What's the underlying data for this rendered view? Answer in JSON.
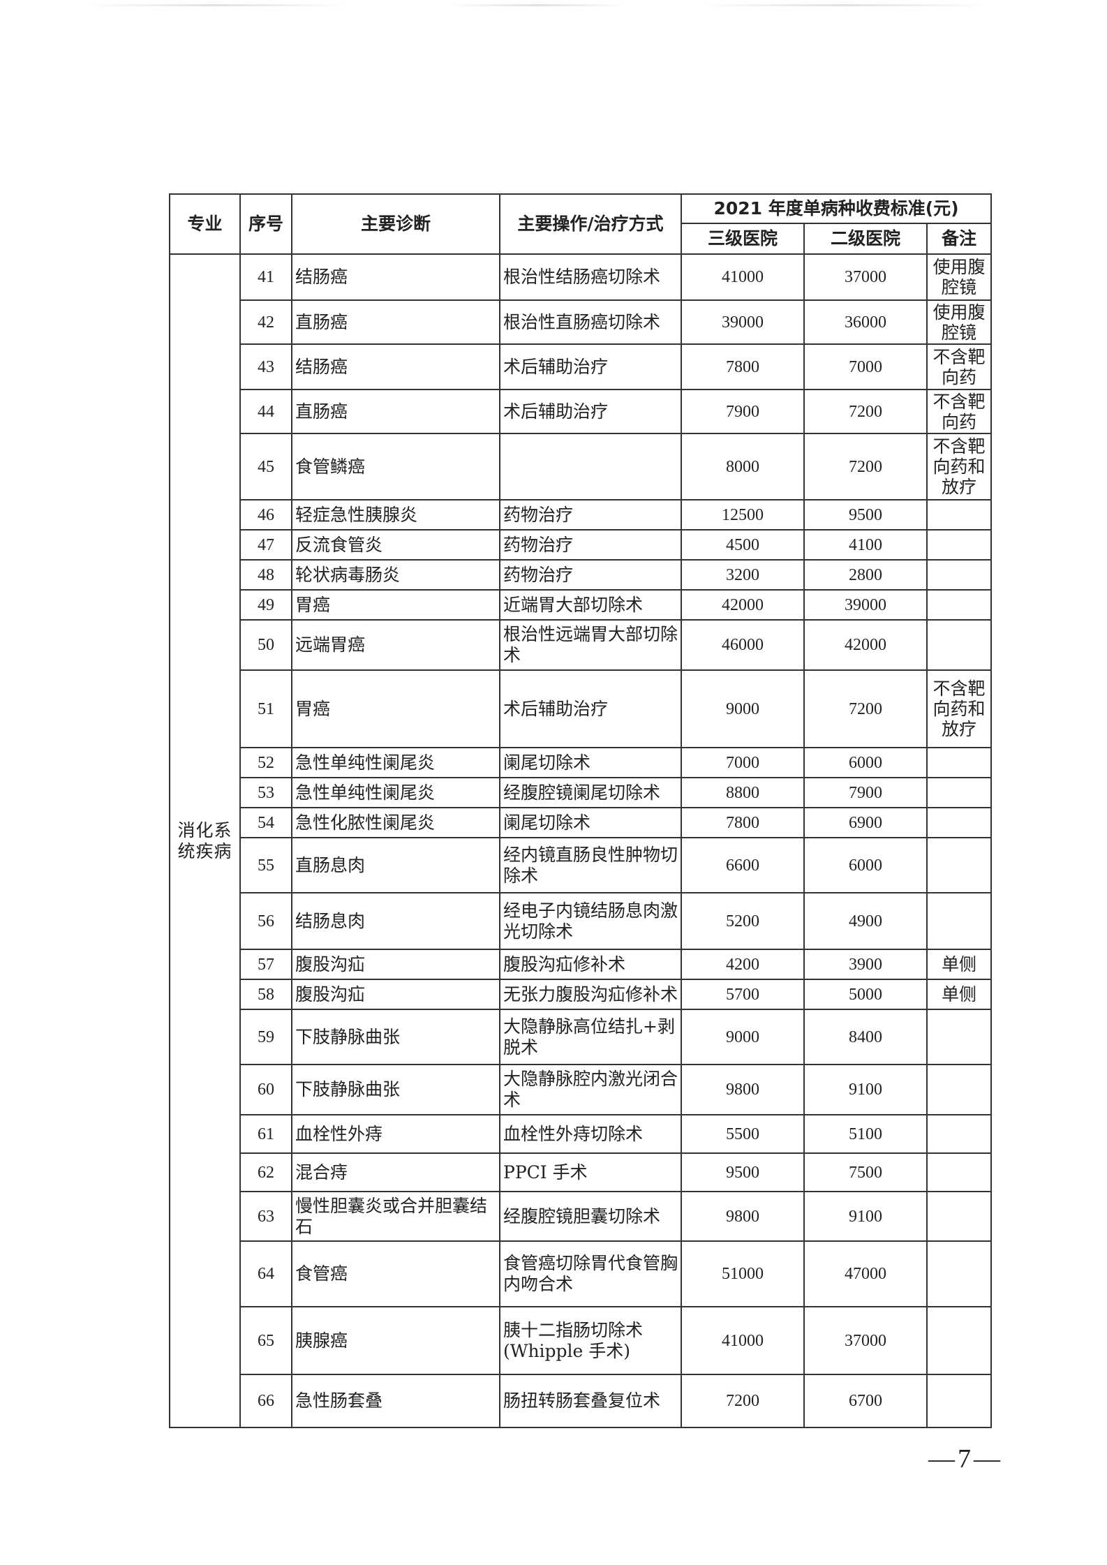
{
  "header": {
    "specialty": "专业",
    "seq": "序号",
    "diagnosis": "主要诊断",
    "operation": "主要操作/治疗方式",
    "fee_group": "2021 年度单病种收费标准(元)",
    "tier3": "三级医院",
    "tier2": "二级医院",
    "note": "备注"
  },
  "specialty": "消化系统疾病",
  "rows": [
    {
      "seq": "41",
      "diag": "结肠癌",
      "op": "根治性结肠癌切除术",
      "t3": "41000",
      "t2": "37000",
      "note": "使用腹腔镜"
    },
    {
      "seq": "42",
      "diag": "直肠癌",
      "op": "根治性直肠癌切除术",
      "t3": "39000",
      "t2": "36000",
      "note": "使用腹腔镜"
    },
    {
      "seq": "43",
      "diag": "结肠癌",
      "op": "术后辅助治疗",
      "t3": "7800",
      "t2": "7000",
      "note": "不含靶向药"
    },
    {
      "seq": "44",
      "diag": "直肠癌",
      "op": "术后辅助治疗",
      "t3": "7900",
      "t2": "7200",
      "note": "不含靶向药"
    },
    {
      "seq": "45",
      "diag": "食管鳞癌",
      "op": "",
      "t3": "8000",
      "t2": "7200",
      "note": "不含靶向药和放疗"
    },
    {
      "seq": "46",
      "diag": "轻症急性胰腺炎",
      "op": "药物治疗",
      "t3": "12500",
      "t2": "9500",
      "note": ""
    },
    {
      "seq": "47",
      "diag": "反流食管炎",
      "op": "药物治疗",
      "t3": "4500",
      "t2": "4100",
      "note": ""
    },
    {
      "seq": "48",
      "diag": "轮状病毒肠炎",
      "op": "药物治疗",
      "t3": "3200",
      "t2": "2800",
      "note": ""
    },
    {
      "seq": "49",
      "diag": "胃癌",
      "op": "近端胃大部切除术",
      "t3": "42000",
      "t2": "39000",
      "note": ""
    },
    {
      "seq": "50",
      "diag": "远端胃癌",
      "op": "根治性远端胃大部切除术",
      "t3": "46000",
      "t2": "42000",
      "note": ""
    },
    {
      "seq": "51",
      "diag": "胃癌",
      "op": "术后辅助治疗",
      "t3": "9000",
      "t2": "7200",
      "note": "不含靶向药和放疗"
    },
    {
      "seq": "52",
      "diag": "急性单纯性阑尾炎",
      "op": "阑尾切除术",
      "t3": "7000",
      "t2": "6000",
      "note": ""
    },
    {
      "seq": "53",
      "diag": "急性单纯性阑尾炎",
      "op": "经腹腔镜阑尾切除术",
      "t3": "8800",
      "t2": "7900",
      "note": ""
    },
    {
      "seq": "54",
      "diag": "急性化脓性阑尾炎",
      "op": "阑尾切除术",
      "t3": "7800",
      "t2": "6900",
      "note": ""
    },
    {
      "seq": "55",
      "diag": "直肠息肉",
      "op": "经内镜直肠良性肿物切除术",
      "t3": "6600",
      "t2": "6000",
      "note": ""
    },
    {
      "seq": "56",
      "diag": "结肠息肉",
      "op": "经电子内镜结肠息肉激光切除术",
      "t3": "5200",
      "t2": "4900",
      "note": ""
    },
    {
      "seq": "57",
      "diag": "腹股沟疝",
      "op": "腹股沟疝修补术",
      "t3": "4200",
      "t2": "3900",
      "note": "单侧"
    },
    {
      "seq": "58",
      "diag": "腹股沟疝",
      "op": "无张力腹股沟疝修补术",
      "t3": "5700",
      "t2": "5000",
      "note": "单侧"
    },
    {
      "seq": "59",
      "diag": "下肢静脉曲张",
      "op": "大隐静脉高位结扎+剥脱术",
      "t3": "9000",
      "t2": "8400",
      "note": ""
    },
    {
      "seq": "60",
      "diag": "下肢静脉曲张",
      "op": "大隐静脉腔内激光闭合术",
      "t3": "9800",
      "t2": "9100",
      "note": ""
    },
    {
      "seq": "61",
      "diag": "血栓性外痔",
      "op": "血栓性外痔切除术",
      "t3": "5500",
      "t2": "5100",
      "note": ""
    },
    {
      "seq": "62",
      "diag": "混合痔",
      "op": "PPCI 手术",
      "t3": "9500",
      "t2": "7500",
      "note": ""
    },
    {
      "seq": "63",
      "diag": "慢性胆囊炎或合并胆囊结石",
      "op": "经腹腔镜胆囊切除术",
      "t3": "9800",
      "t2": "9100",
      "note": ""
    },
    {
      "seq": "64",
      "diag": "食管癌",
      "op": "食管癌切除胃代食管胸内吻合术",
      "t3": "51000",
      "t2": "47000",
      "note": ""
    },
    {
      "seq": "65",
      "diag": "胰腺癌",
      "op": "胰十二指肠切除术(Whipple 手术)",
      "t3": "41000",
      "t2": "37000",
      "note": ""
    },
    {
      "seq": "66",
      "diag": "急性肠套叠",
      "op": "肠扭转肠套叠复位术",
      "t3": "7200",
      "t2": "6700",
      "note": ""
    }
  ],
  "page_number": "—7—"
}
